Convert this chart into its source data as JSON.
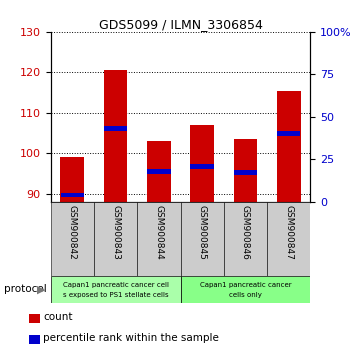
{
  "title": "GDS5099 / ILMN_3306854",
  "samples": [
    "GSM900842",
    "GSM900843",
    "GSM900844",
    "GSM900845",
    "GSM900846",
    "GSM900847"
  ],
  "counts": [
    99.0,
    120.5,
    103.0,
    107.0,
    103.5,
    115.5
  ],
  "percentile_ranks": [
    4.0,
    43.0,
    18.0,
    21.0,
    17.0,
    40.0
  ],
  "ylim_left": [
    88,
    130
  ],
  "ylim_right": [
    0,
    100
  ],
  "yticks_left": [
    90,
    100,
    110,
    120,
    130
  ],
  "yticks_right": [
    0,
    25,
    50,
    75,
    100
  ],
  "yticklabels_right": [
    "0",
    "25",
    "50",
    "75",
    "100%"
  ],
  "bar_bottom": 88,
  "bar_color": "#cc0000",
  "percentile_color": "#0000cc",
  "group1_label_line1": "Capan1 pancreatic cancer cell",
  "group1_label_line2": "s exposed to PS1 stellate cells",
  "group2_label_line1": "Capan1 pancreatic cancer",
  "group2_label_line2": "cells only",
  "group1_color": "#aaffaa",
  "group2_color": "#88ff88",
  "legend_count_color": "#cc0000",
  "legend_percentile_color": "#0000cc",
  "bar_width": 0.55,
  "bg_color": "#ffffff",
  "tick_label_color_left": "#cc0000",
  "tick_label_color_right": "#0000cc",
  "xtick_area_color": "#cccccc",
  "title_fontsize": 9
}
